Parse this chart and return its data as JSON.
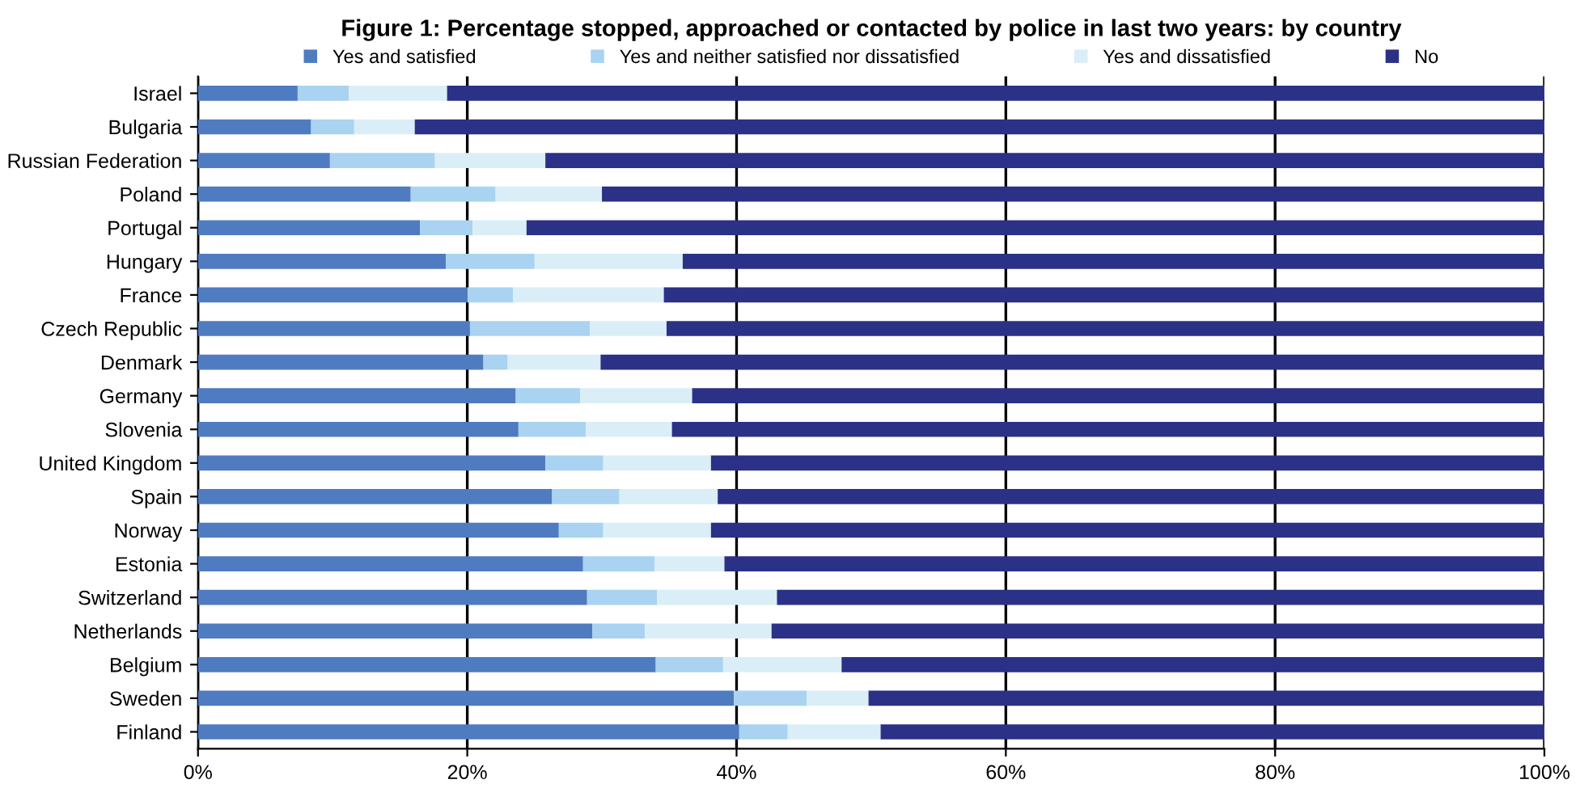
{
  "chart_data": {
    "type": "bar",
    "orientation": "horizontal",
    "stacked": true,
    "title": "Figure 1: Percentage stopped, approached or contacted by police in last two years: by country",
    "categories": [
      "Israel",
      "Bulgaria",
      "Russian Federation",
      "Poland",
      "Portugal",
      "Hungary",
      "France",
      "Czech Republic",
      "Denmark",
      "Germany",
      "Slovenia",
      "United Kingdom",
      "Spain",
      "Norway",
      "Estonia",
      "Switzerland",
      "Netherlands",
      "Belgium",
      "Sweden",
      "Finland"
    ],
    "series": [
      {
        "name": "Yes and satisfied",
        "color": "#4f7bc0",
        "values": [
          7.4,
          8.4,
          9.8,
          15.8,
          16.5,
          18.4,
          20.0,
          20.2,
          21.2,
          23.6,
          23.8,
          25.8,
          26.3,
          26.8,
          28.6,
          28.9,
          29.3,
          34.0,
          39.8,
          40.2
        ]
      },
      {
        "name": "Yes and neither satisfied nor dissatisfied",
        "color": "#a9d3f0",
        "values": [
          3.8,
          3.2,
          7.8,
          6.3,
          3.9,
          6.6,
          3.4,
          8.9,
          1.8,
          4.8,
          5.0,
          4.3,
          5.0,
          3.3,
          5.3,
          5.2,
          3.9,
          5.0,
          5.4,
          3.6
        ]
      },
      {
        "name": "Yes and dissatisfied",
        "color": "#daeef7",
        "values": [
          7.3,
          4.5,
          8.2,
          7.9,
          4.0,
          11.0,
          11.2,
          5.7,
          6.9,
          8.3,
          6.4,
          8.0,
          7.3,
          8.0,
          5.2,
          8.9,
          9.4,
          8.8,
          4.6,
          6.9
        ]
      },
      {
        "name": "No",
        "color": "#2b3187",
        "values": [
          81.5,
          83.9,
          74.2,
          70.0,
          75.6,
          64.0,
          65.4,
          65.2,
          70.1,
          63.3,
          64.8,
          61.9,
          61.4,
          61.9,
          60.9,
          57.0,
          57.4,
          52.2,
          50.2,
          49.3
        ]
      }
    ],
    "xlim": [
      0,
      100
    ],
    "xticks": [
      {
        "value": 0,
        "label": "0%"
      },
      {
        "value": 20,
        "label": "20%"
      },
      {
        "value": 40,
        "label": "40%"
      },
      {
        "value": 60,
        "label": "60%"
      },
      {
        "value": 80,
        "label": "80%"
      },
      {
        "value": 100,
        "label": "100%"
      }
    ],
    "grid": "x",
    "legend": "top"
  }
}
